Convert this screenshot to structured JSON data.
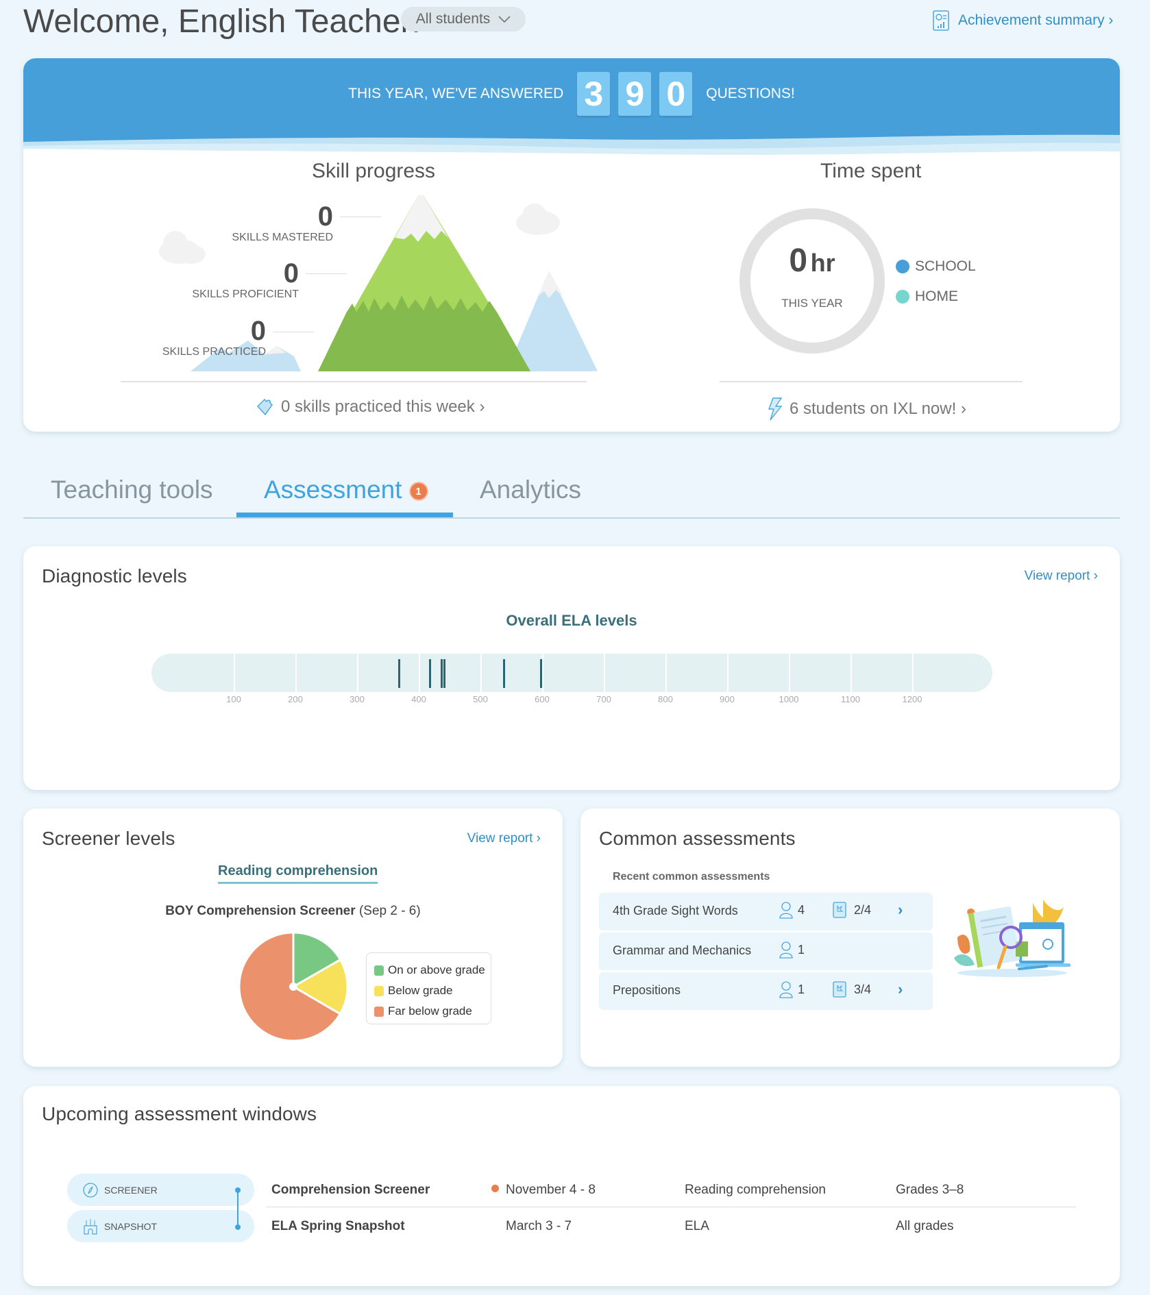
{
  "header": {
    "welcome": "Welcome, English Teacher!",
    "student_filter": "All students",
    "achievement_link": "Achievement summary ›"
  },
  "banner": {
    "pre_text": "THIS YEAR, WE'VE ANSWERED",
    "digits": [
      "3",
      "9",
      "0"
    ],
    "post_text": "QUESTIONS!",
    "color": "#479fd9"
  },
  "skill_progress": {
    "title": "Skill progress",
    "mastered": {
      "value": "0",
      "label": "SKILLS MASTERED"
    },
    "proficient": {
      "value": "0",
      "label": "SKILLS PROFICIENT"
    },
    "practiced": {
      "value": "0",
      "label": "SKILLS PRACTICED"
    },
    "footer_link": "0 skills practiced this week ›"
  },
  "time_spent": {
    "title": "Time spent",
    "value": "0",
    "unit": "hr",
    "caption": "THIS YEAR",
    "legend": [
      {
        "label": "SCHOOL",
        "color": "#479fd9"
      },
      {
        "label": "HOME",
        "color": "#74d6cc"
      }
    ],
    "footer_link": "6 students on IXL now! ›"
  },
  "tabs": [
    {
      "label": "Teaching tools",
      "active": false
    },
    {
      "label": "Assessment",
      "active": true,
      "badge": "1"
    },
    {
      "label": "Analytics",
      "active": false
    }
  ],
  "diagnostic": {
    "title": "Diagnostic levels",
    "view_report": "View report ›",
    "chart_title": "Overall ELA levels",
    "ticks": [
      "100",
      "200",
      "300",
      "400",
      "500",
      "600",
      "700",
      "800",
      "900",
      "1000",
      "1100",
      "1200"
    ],
    "marks": [
      368,
      418,
      437,
      441,
      538,
      598
    ]
  },
  "screener": {
    "title": "Screener levels",
    "view_report": "View report ›",
    "subject_tab": "Reading comprehension",
    "assessment_name": "BOY Comprehension Screener",
    "assessment_dates": "(Sep 2 - 6)"
  },
  "chart_data": {
    "type": "pie",
    "title": "BOY Comprehension Screener (Sep 2 - 6)",
    "categories": [
      "On or above grade",
      "Below grade",
      "Far below grade"
    ],
    "values": [
      16.7,
      16.7,
      66.6
    ],
    "colors": [
      "#78c883",
      "#f7e15a",
      "#eb916c"
    ],
    "legend_position": "right"
  },
  "common": {
    "title": "Common assessments",
    "subtitle": "Recent common assessments",
    "rows": [
      {
        "name": "4th Grade Sight Words",
        "students": "4",
        "score": "2/4",
        "has_score": true
      },
      {
        "name": "Grammar and Mechanics",
        "students": "1",
        "score": "",
        "has_score": false
      },
      {
        "name": "Prepositions",
        "students": "1",
        "score": "3/4",
        "has_score": true
      }
    ]
  },
  "upcoming": {
    "title": "Upcoming assessment windows",
    "types": [
      {
        "label": "SCREENER",
        "icon": "compass-icon"
      },
      {
        "label": "SNAPSHOT",
        "icon": "castle-icon"
      }
    ],
    "rows": [
      {
        "name": "Comprehension Screener",
        "dates": "November 4 - 8",
        "current": true,
        "subject": "Reading comprehension",
        "grades": "Grades 3–8"
      },
      {
        "name": "ELA Spring Snapshot",
        "dates": "March 3 - 7",
        "current": false,
        "subject": "ELA",
        "grades": "All grades"
      }
    ]
  }
}
